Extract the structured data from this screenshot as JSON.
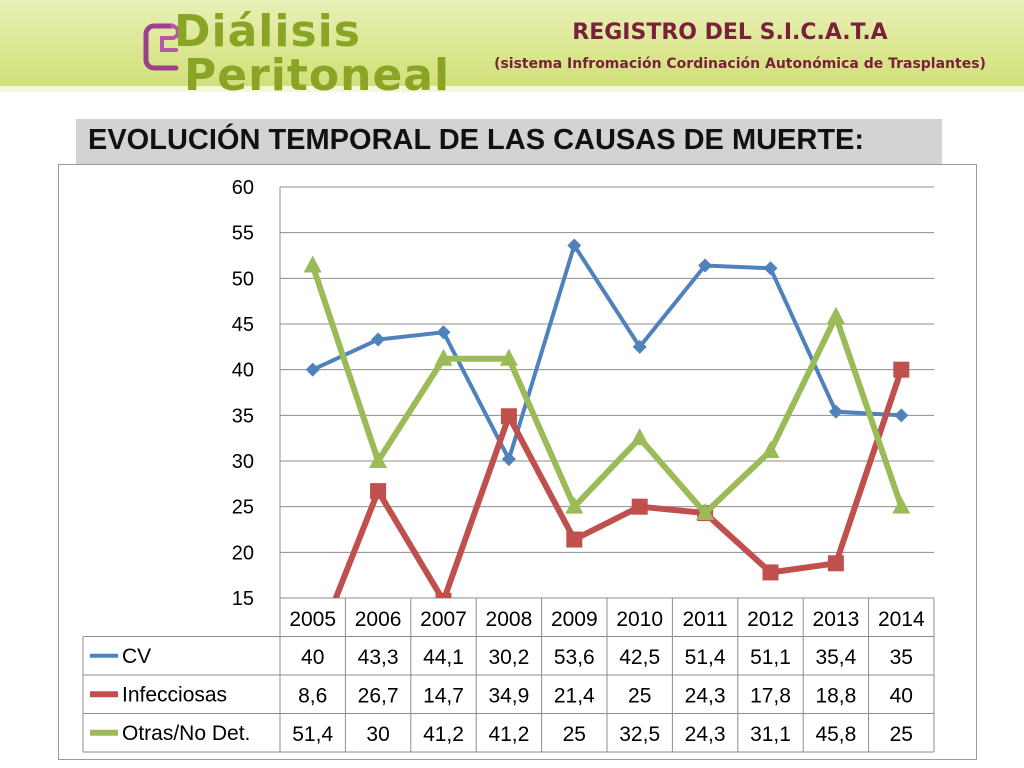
{
  "header": {
    "logo_line1": "Diálisis",
    "logo_line2": "Peritoneal",
    "registro": "REGISTRO DEL S.I.C.A.T.A",
    "sistema": "(sistema Infromación Cordinación Autonómica de Trasplantes)"
  },
  "heading": "EVOLUCIÓN TEMPORAL DE LAS CAUSAS DE MUERTE:",
  "colors": {
    "cv": "#4f81bd",
    "infecciosas": "#c0504d",
    "otras": "#9bbb59"
  },
  "chart_data": {
    "type": "line",
    "title": "",
    "xlabel": "",
    "ylabel": "",
    "ylim": [
      15,
      60
    ],
    "yticks": [
      "60",
      "55",
      "50",
      "45",
      "40",
      "35",
      "30",
      "25",
      "20",
      "15"
    ],
    "grid": true,
    "legend": "data-table",
    "categories": [
      "2005",
      "2006",
      "2007",
      "2008",
      "2009",
      "2010",
      "2011",
      "2012",
      "2013",
      "2014"
    ],
    "series": [
      {
        "name": "CV",
        "marker": "diamond",
        "values": [
          40,
          43.3,
          44.1,
          30.2,
          53.6,
          42.5,
          51.4,
          51.1,
          35.4,
          35
        ],
        "labels": [
          "40",
          "43,3",
          "44,1",
          "30,2",
          "53,6",
          "42,5",
          "51,4",
          "51,1",
          "35,4",
          "35"
        ]
      },
      {
        "name": "Infecciosas",
        "marker": "square",
        "values": [
          8.6,
          26.7,
          14.7,
          34.9,
          21.4,
          25,
          24.3,
          17.8,
          18.8,
          40
        ],
        "labels": [
          "8,6",
          "26,7",
          "14,7",
          "34,9",
          "21,4",
          "25",
          "24,3",
          "17,8",
          "18,8",
          "40"
        ]
      },
      {
        "name": "Otras/No Det.",
        "marker": "triangle",
        "values": [
          51.4,
          30,
          41.2,
          41.2,
          25,
          32.5,
          24.3,
          31.1,
          45.8,
          25
        ],
        "labels": [
          "51,4",
          "30",
          "41,2",
          "41,2",
          "25",
          "32,5",
          "24,3",
          "31,1",
          "45,8",
          "25"
        ]
      }
    ]
  }
}
